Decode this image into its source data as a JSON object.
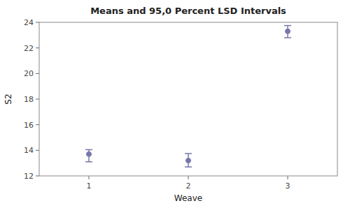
{
  "chart_data": {
    "type": "errorbar",
    "title": "Means and 95,0 Percent LSD Intervals",
    "x_label": "Weave",
    "y_label": "S2",
    "x": [
      1,
      2,
      3
    ],
    "values": [
      13.7,
      13.2,
      23.3
    ],
    "lower_errors": [
      0.6,
      0.5,
      0.5
    ],
    "upper_errors": [
      0.35,
      0.55,
      0.45
    ],
    "xlim": [
      0.5,
      3.5
    ],
    "xticks": [
      1,
      2,
      3
    ],
    "ylim": [
      12,
      24
    ],
    "yticks": [
      12,
      14,
      16,
      18,
      20,
      22,
      24
    ],
    "color": "#7777aa",
    "grid": false
  }
}
